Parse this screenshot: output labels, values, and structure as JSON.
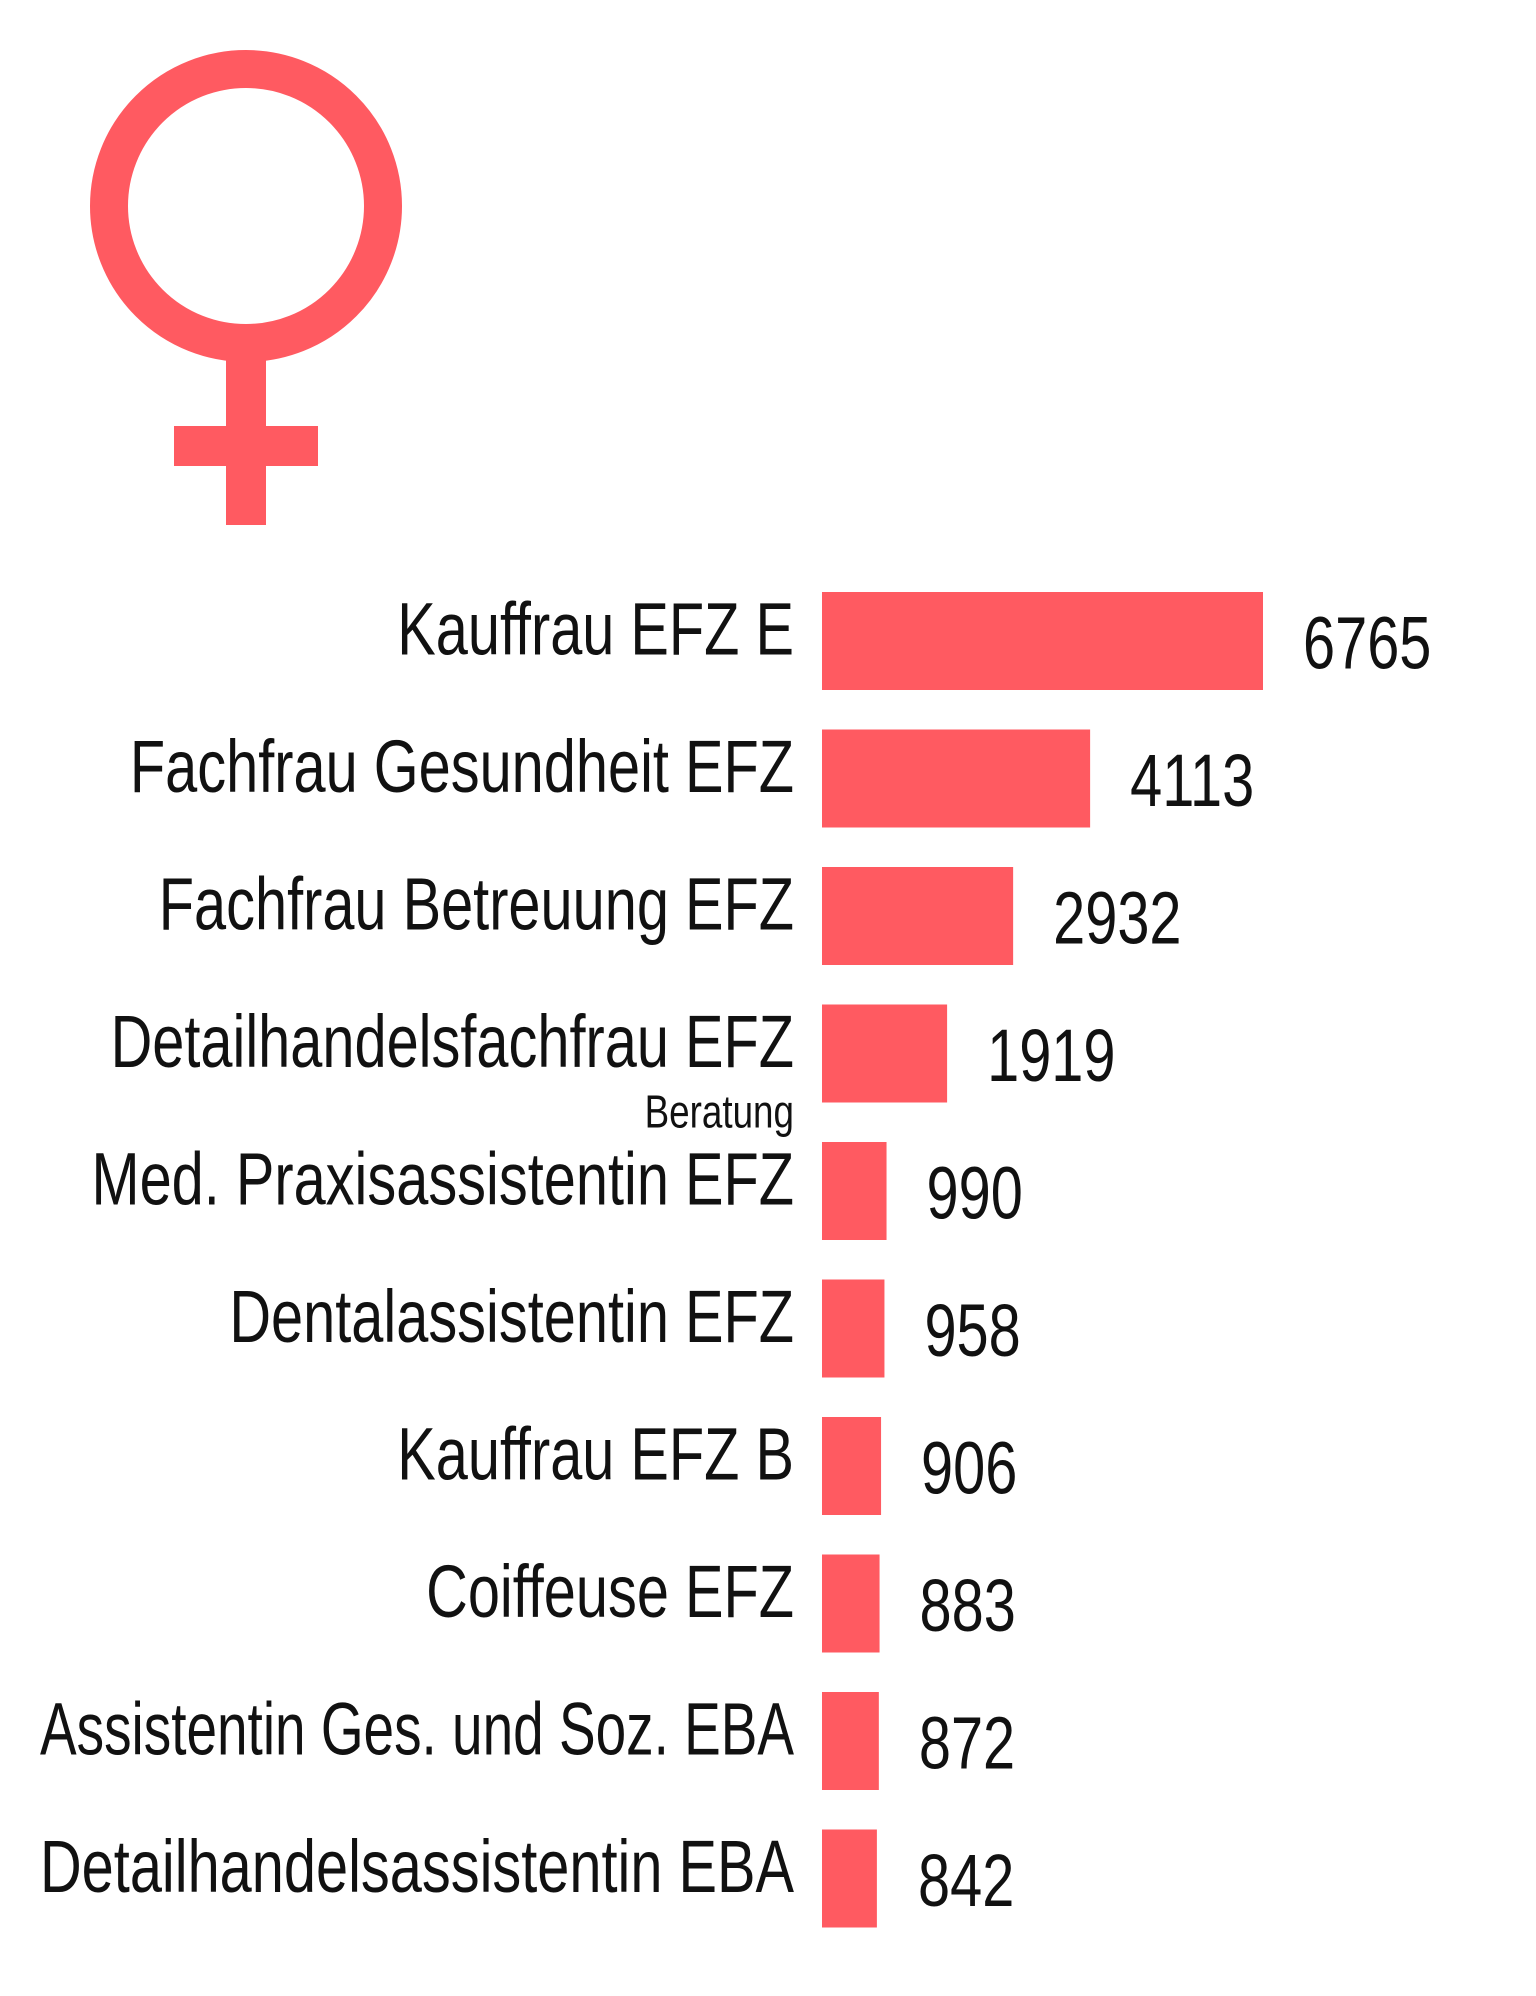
{
  "icon": {
    "name": "female-symbol-icon",
    "color": "#FF5A61"
  },
  "chart_data": {
    "type": "bar",
    "orientation": "horizontal",
    "title": "",
    "xlabel": "",
    "ylabel": "",
    "bar_color": "#FF5A61",
    "xlim": [
      0,
      6765
    ],
    "grid": false,
    "legend": "none",
    "categories": [
      "Kauffrau EFZ E",
      "Fachfrau Gesundheit EFZ",
      "Fachfrau Betreuung EFZ",
      "Detailhandelsfachfrau EFZ",
      "Med. Praxisassistentin EFZ",
      "Dentalassistentin EFZ",
      "Kauffrau EFZ B",
      "Coiffeuse EFZ",
      "Assistentin Ges. und Soz. EBA",
      "Detailhandelsassistentin EBA"
    ],
    "category_sublabels": [
      "",
      "",
      "",
      "Beratung",
      "",
      "",
      "",
      "",
      "",
      ""
    ],
    "values": [
      6765,
      4113,
      2932,
      1919,
      990,
      958,
      906,
      883,
      872,
      842
    ],
    "value_labels": [
      "6765",
      "4113",
      "2932",
      "1919",
      "990",
      "958",
      "906",
      "883",
      "872",
      "842"
    ]
  }
}
